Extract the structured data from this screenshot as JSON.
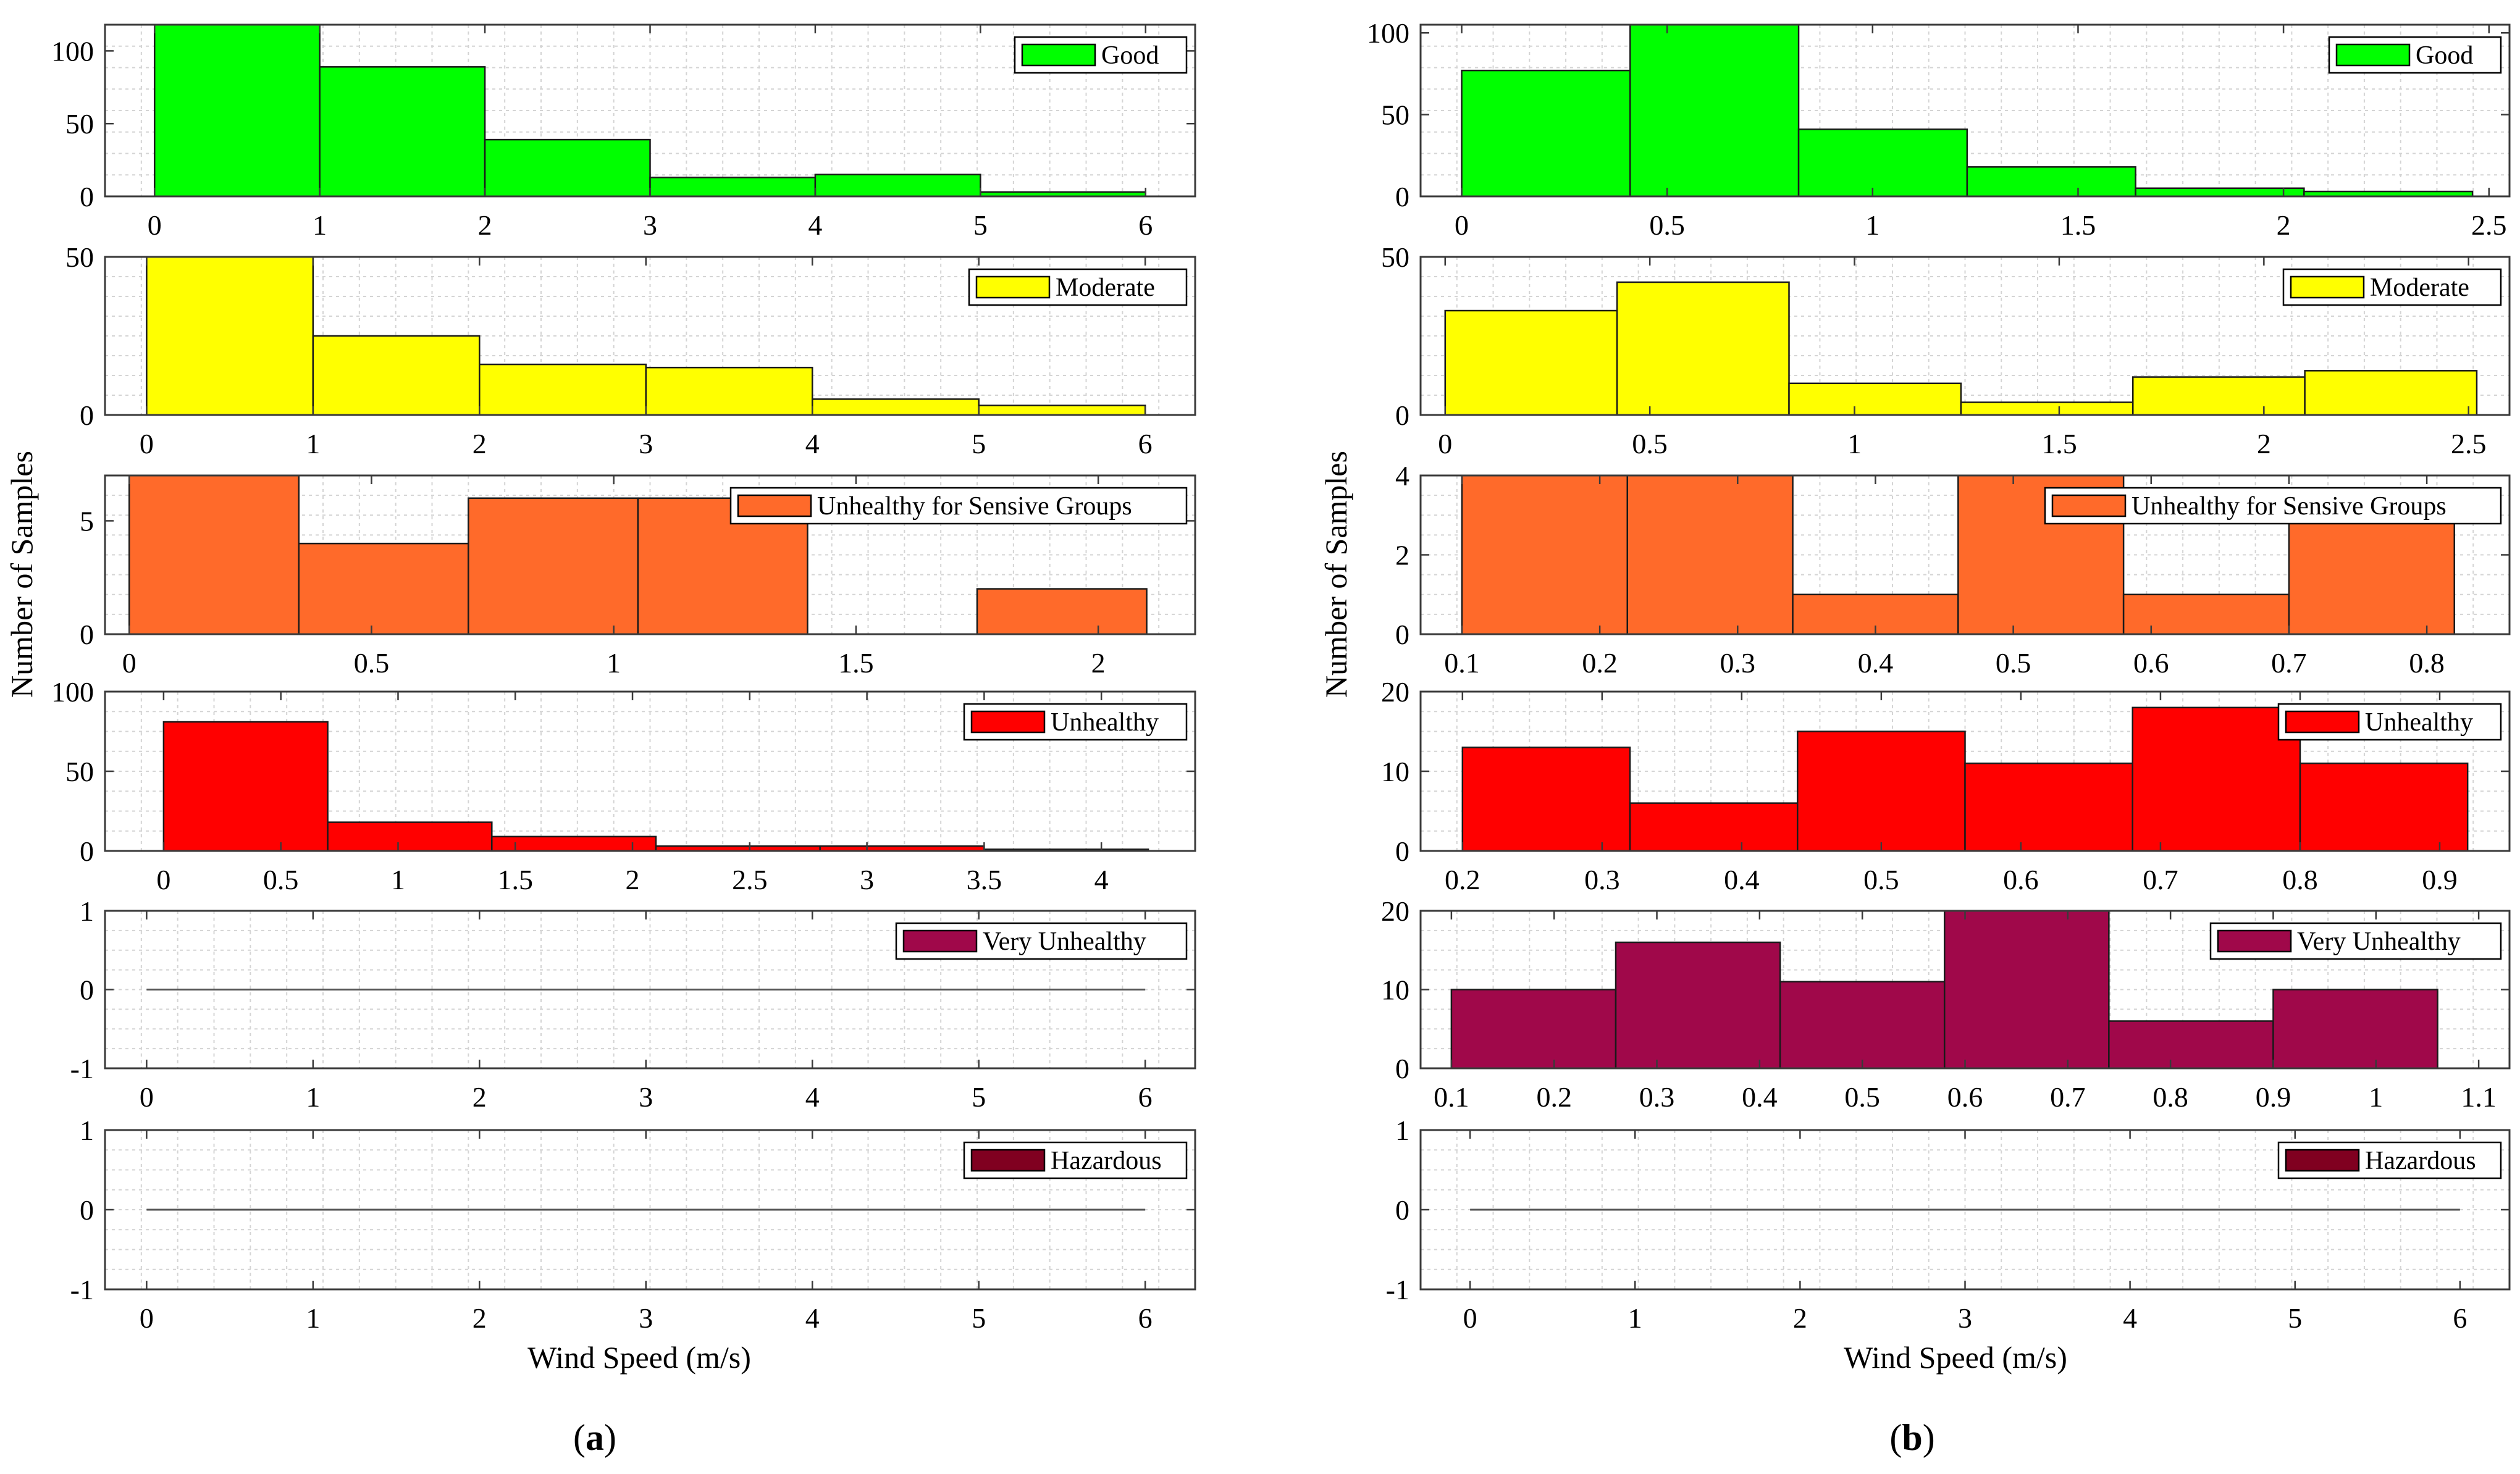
{
  "figure": {
    "y_label": "Number of Samples",
    "x_label": "Wind Speed (m/s)",
    "panels": [
      {
        "id": "a",
        "label": "a",
        "paren_open": "(",
        "paren_close": ")"
      },
      {
        "id": "b",
        "label": "b",
        "paren_open": "(",
        "paren_close": ")"
      }
    ]
  },
  "chart_data": [
    {
      "type": "bar",
      "panel": "a",
      "legend": "Good",
      "color": "#00ff00",
      "xlim": [
        -0.3,
        6.3
      ],
      "ylim": [
        0,
        118
      ],
      "xticks": [
        "0",
        "1",
        "2",
        "3",
        "4",
        "5",
        "6"
      ],
      "xtick_values": [
        0,
        1,
        2,
        3,
        4,
        5,
        6
      ],
      "yticks": [
        "0",
        "50",
        "100"
      ],
      "ytick_values": [
        0,
        50,
        100
      ],
      "bins": [
        [
          0,
          1,
          118
        ],
        [
          1,
          2,
          89
        ],
        [
          2,
          3,
          39
        ],
        [
          3,
          4,
          13
        ],
        [
          4,
          5,
          15
        ],
        [
          5,
          6,
          3
        ]
      ]
    },
    {
      "type": "bar",
      "panel": "a",
      "legend": "Moderate",
      "color": "#ffff00",
      "xlim": [
        -0.25,
        6.3
      ],
      "ylim": [
        0,
        50
      ],
      "xticks": [
        "0",
        "1",
        "2",
        "3",
        "4",
        "5",
        "6"
      ],
      "xtick_values": [
        0,
        1,
        2,
        3,
        4,
        5,
        6
      ],
      "yticks": [
        "0",
        "50"
      ],
      "ytick_values": [
        0,
        50
      ],
      "bins": [
        [
          0,
          1,
          50
        ],
        [
          1,
          2,
          25
        ],
        [
          2,
          3,
          16
        ],
        [
          3,
          4,
          15
        ],
        [
          4,
          5,
          5
        ],
        [
          5,
          6,
          3
        ]
      ]
    },
    {
      "type": "bar",
      "panel": "a",
      "legend": "Unhealthy for Sensive Groups",
      "color": "#ff6a2a",
      "xlim": [
        -0.05,
        2.2
      ],
      "ylim": [
        0,
        7
      ],
      "xticks": [
        "0",
        "0.5",
        "1",
        "1.5",
        "2"
      ],
      "xtick_values": [
        0,
        0.5,
        1,
        1.5,
        2
      ],
      "yticks": [
        "0",
        "5"
      ],
      "ytick_values": [
        0,
        5
      ],
      "bins": [
        [
          0,
          0.35,
          7
        ],
        [
          0.35,
          0.7,
          4
        ],
        [
          0.7,
          1.05,
          6
        ],
        [
          1.05,
          1.4,
          6
        ],
        [
          1.75,
          2.1,
          2
        ]
      ]
    },
    {
      "type": "bar",
      "panel": "a",
      "legend": "Unhealthy",
      "color": "#ff0000",
      "xlim": [
        -0.25,
        4.4
      ],
      "ylim": [
        0,
        100
      ],
      "xticks": [
        "0",
        "0.5",
        "1",
        "1.5",
        "2",
        "2.5",
        "3",
        "3.5",
        "4"
      ],
      "xtick_values": [
        0,
        0.5,
        1,
        1.5,
        2,
        2.5,
        3,
        3.5,
        4
      ],
      "yticks": [
        "0",
        "50",
        "100"
      ],
      "ytick_values": [
        0,
        50,
        100
      ],
      "bins": [
        [
          0,
          0.7,
          81
        ],
        [
          0.7,
          1.4,
          18
        ],
        [
          1.4,
          2.1,
          9
        ],
        [
          2.1,
          2.8,
          3
        ],
        [
          2.8,
          3.5,
          3
        ],
        [
          3.5,
          4.2,
          1
        ]
      ]
    },
    {
      "type": "bar",
      "panel": "a",
      "legend": "Very Unhealthy",
      "color": "#a0084a",
      "xlim": [
        -0.25,
        6.3
      ],
      "ylim": [
        -1,
        1
      ],
      "xticks": [
        "0",
        "1",
        "2",
        "3",
        "4",
        "5",
        "6"
      ],
      "xtick_values": [
        0,
        1,
        2,
        3,
        4,
        5,
        6
      ],
      "yticks": [
        "-1",
        "0",
        "1"
      ],
      "ytick_values": [
        -1,
        0,
        1
      ],
      "baseline": [
        0,
        6
      ],
      "bins": []
    },
    {
      "type": "bar",
      "panel": "a",
      "legend": "Hazardous",
      "color": "#800020",
      "xlim": [
        -0.25,
        6.3
      ],
      "ylim": [
        -1,
        1
      ],
      "xticks": [
        "0",
        "1",
        "2",
        "3",
        "4",
        "5",
        "6"
      ],
      "xtick_values": [
        0,
        1,
        2,
        3,
        4,
        5,
        6
      ],
      "yticks": [
        "-1",
        "0",
        "1"
      ],
      "ytick_values": [
        -1,
        0,
        1
      ],
      "baseline": [
        0,
        6
      ],
      "bins": []
    },
    {
      "type": "bar",
      "panel": "b",
      "legend": "Good",
      "color": "#00ff00",
      "xlim": [
        -0.1,
        2.55
      ],
      "ylim": [
        0,
        105
      ],
      "xticks": [
        "0",
        "0.5",
        "1",
        "1.5",
        "2",
        "2.5"
      ],
      "xtick_values": [
        0,
        0.5,
        1,
        1.5,
        2,
        2.5
      ],
      "yticks": [
        "0",
        "50",
        "100"
      ],
      "ytick_values": [
        0,
        50,
        100
      ],
      "bins": [
        [
          0,
          0.41,
          77
        ],
        [
          0.41,
          0.82,
          105
        ],
        [
          0.82,
          1.23,
          41
        ],
        [
          1.23,
          1.64,
          18
        ],
        [
          1.64,
          2.05,
          5
        ],
        [
          2.05,
          2.46,
          3
        ]
      ]
    },
    {
      "type": "bar",
      "panel": "b",
      "legend": "Moderate",
      "color": "#ffff00",
      "xlim": [
        -0.06,
        2.6
      ],
      "ylim": [
        0,
        50
      ],
      "xticks": [
        "0",
        "0.5",
        "1",
        "1.5",
        "2",
        "2.5"
      ],
      "xtick_values": [
        0,
        0.5,
        1,
        1.5,
        2,
        2.5
      ],
      "yticks": [
        "0",
        "50"
      ],
      "ytick_values": [
        0,
        50
      ],
      "bins": [
        [
          0,
          0.42,
          33
        ],
        [
          0.42,
          0.84,
          42
        ],
        [
          0.84,
          1.26,
          10
        ],
        [
          1.26,
          1.68,
          4
        ],
        [
          1.68,
          2.1,
          12
        ],
        [
          2.1,
          2.52,
          14
        ]
      ]
    },
    {
      "type": "bar",
      "panel": "b",
      "legend": "Unhealthy for Sensive Groups",
      "color": "#ff6a2a",
      "xlim": [
        0.07,
        0.86
      ],
      "ylim": [
        0,
        4
      ],
      "xticks": [
        "0.1",
        "0.2",
        "0.3",
        "0.4",
        "0.5",
        "0.6",
        "0.7",
        "0.8"
      ],
      "xtick_values": [
        0.1,
        0.2,
        0.3,
        0.4,
        0.5,
        0.6,
        0.7,
        0.8
      ],
      "yticks": [
        "0",
        "2",
        "4"
      ],
      "ytick_values": [
        0,
        2,
        4
      ],
      "bins": [
        [
          0.1,
          0.22,
          4
        ],
        [
          0.22,
          0.34,
          4
        ],
        [
          0.34,
          0.46,
          1
        ],
        [
          0.46,
          0.58,
          4
        ],
        [
          0.58,
          0.7,
          1
        ],
        [
          0.7,
          0.82,
          3
        ]
      ]
    },
    {
      "type": "bar",
      "panel": "b",
      "legend": "Unhealthy",
      "color": "#ff0000",
      "xlim": [
        0.17,
        0.95
      ],
      "ylim": [
        0,
        20
      ],
      "xticks": [
        "0.2",
        "0.3",
        "0.4",
        "0.5",
        "0.6",
        "0.7",
        "0.8",
        "0.9"
      ],
      "xtick_values": [
        0.2,
        0.3,
        0.4,
        0.5,
        0.6,
        0.7,
        0.8,
        0.9
      ],
      "yticks": [
        "0",
        "10",
        "20"
      ],
      "ytick_values": [
        0,
        10,
        20
      ],
      "bins": [
        [
          0.2,
          0.32,
          13
        ],
        [
          0.32,
          0.44,
          6
        ],
        [
          0.44,
          0.56,
          15
        ],
        [
          0.56,
          0.68,
          11
        ],
        [
          0.68,
          0.8,
          18
        ],
        [
          0.8,
          0.92,
          11
        ]
      ]
    },
    {
      "type": "bar",
      "panel": "b",
      "legend": "Very Unhealthy",
      "color": "#a0084a",
      "xlim": [
        0.07,
        1.13
      ],
      "ylim": [
        0,
        20
      ],
      "xticks": [
        "0.1",
        "0.2",
        "0.3",
        "0.4",
        "0.5",
        "0.6",
        "0.7",
        "0.8",
        "0.9",
        "1",
        "1.1"
      ],
      "xtick_values": [
        0.1,
        0.2,
        0.3,
        0.4,
        0.5,
        0.6,
        0.7,
        0.8,
        0.9,
        1,
        1.1
      ],
      "yticks": [
        "0",
        "10",
        "20"
      ],
      "ytick_values": [
        0,
        10,
        20
      ],
      "bins": [
        [
          0.1,
          0.26,
          10
        ],
        [
          0.26,
          0.42,
          16
        ],
        [
          0.42,
          0.58,
          11
        ],
        [
          0.58,
          0.74,
          20
        ],
        [
          0.74,
          0.9,
          6
        ],
        [
          0.9,
          1.06,
          10
        ]
      ]
    },
    {
      "type": "bar",
      "panel": "b",
      "legend": "Hazardous",
      "color": "#800020",
      "xlim": [
        -0.3,
        6.3
      ],
      "ylim": [
        -1,
        1
      ],
      "xticks": [
        "0",
        "1",
        "2",
        "3",
        "4",
        "5",
        "6"
      ],
      "xtick_values": [
        0,
        1,
        2,
        3,
        4,
        5,
        6
      ],
      "yticks": [
        "-1",
        "0",
        "1"
      ],
      "ytick_values": [
        -1,
        0,
        1
      ],
      "baseline": [
        0,
        6
      ],
      "bins": []
    }
  ]
}
